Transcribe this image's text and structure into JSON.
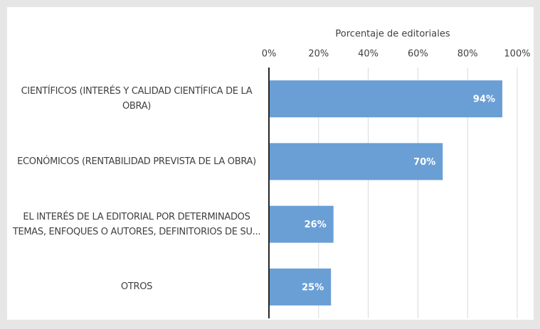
{
  "chart_data": {
    "type": "bar",
    "orientation": "horizontal",
    "x_axis_label": "Porcentaje de editoriales",
    "categories": [
      "CIENTÍFICOS (INTERÉS Y CALIDAD CIENTÍFICA DE LA OBRA)",
      "ECONÓMICOS (RENTABILIDAD PREVISTA DE LA OBRA)",
      "EL INTERÉS DE LA EDITORIAL POR DETERMINADOS TEMAS, ENFOQUES O AUTORES, DEFINITORIOS DE SU...",
      "OTROS"
    ],
    "values": [
      94,
      70,
      26,
      25
    ],
    "value_labels": [
      "94%",
      "70%",
      "26%",
      "25%"
    ],
    "color": "#6a9fd6",
    "xlim": [
      0,
      100
    ],
    "xticks": [
      {
        "value": 0,
        "label": "0%"
      },
      {
        "value": 20,
        "label": "20%"
      },
      {
        "value": 40,
        "label": "40%"
      },
      {
        "value": 60,
        "label": "60%"
      },
      {
        "value": 80,
        "label": "80%"
      },
      {
        "value": 100,
        "label": "100%"
      }
    ],
    "grid": true
  }
}
